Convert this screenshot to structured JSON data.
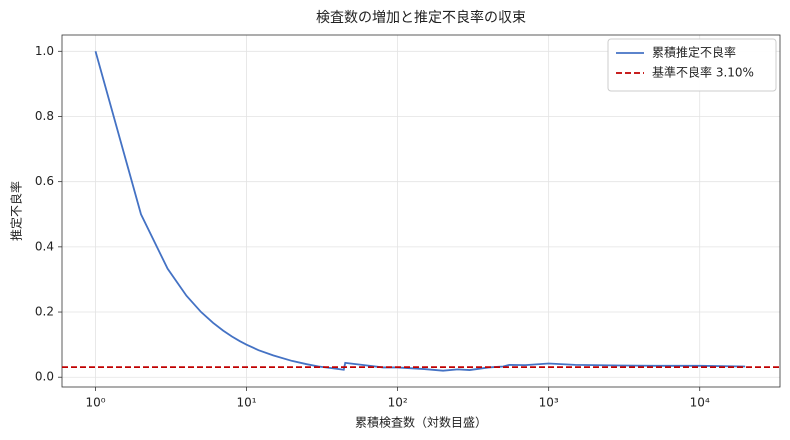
{
  "chart_data": {
    "type": "line",
    "title": "検査数の増加と推定不良率の収束",
    "xlabel": "累積検査数（対数目盛）",
    "ylabel": "推定不良率",
    "xscale": "log",
    "x": [
      1,
      2,
      3,
      4,
      5,
      6,
      7,
      8,
      9,
      10,
      12,
      15,
      20,
      25,
      30,
      35,
      44,
      45,
      60,
      80,
      100,
      150,
      200,
      250,
      300,
      400,
      500,
      550,
      700,
      1000,
      1500,
      2000,
      3000,
      5000,
      10000,
      20000
    ],
    "series": [
      {
        "name": "累積推定不良率",
        "color": "#4472c4",
        "values": [
          1,
          0.5,
          0.333,
          0.25,
          0.2,
          0.167,
          0.143,
          0.125,
          0.111,
          0.1,
          0.083,
          0.067,
          0.05,
          0.04,
          0.033,
          0.029,
          0.023,
          0.044,
          0.037,
          0.03,
          0.03,
          0.025,
          0.02,
          0.024,
          0.022,
          0.03,
          0.033,
          0.038,
          0.037,
          0.042,
          0.038,
          0.037,
          0.036,
          0.035,
          0.035,
          0.033
        ]
      }
    ],
    "hlines": [
      {
        "name": "基準不良率 3.10%",
        "y": 0.031,
        "color": "#c00000",
        "style": "dashed"
      }
    ],
    "xlim": [
      0.6,
      34000
    ],
    "ylim": [
      -0.03,
      1.05
    ],
    "xticks": [
      {
        "value": 1,
        "label": "10⁰"
      },
      {
        "value": 10,
        "label": "10¹"
      },
      {
        "value": 100,
        "label": "10²"
      },
      {
        "value": 1000,
        "label": "10³"
      },
      {
        "value": 10000,
        "label": "10⁴"
      }
    ],
    "yticks": [
      {
        "value": 0,
        "label": "0.0"
      },
      0.2,
      0.4,
      0.6,
      0.8,
      {
        "value": 1,
        "label": "1.0"
      }
    ],
    "grid": true,
    "legend": "upper right"
  }
}
